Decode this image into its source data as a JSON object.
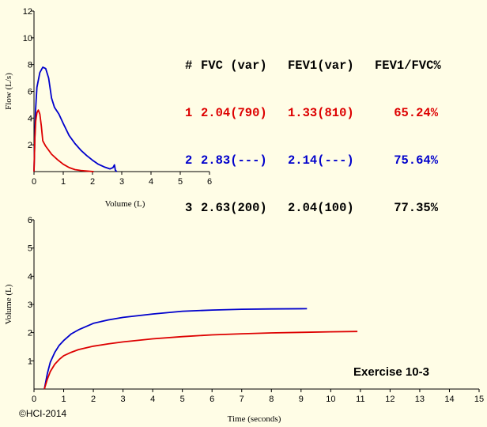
{
  "results_table": {
    "headers": [
      "#",
      "FVC (var)",
      "FEV1(var)",
      "FEV1/FVC%"
    ],
    "rows": [
      {
        "num": "1",
        "fvc": "2.04(790)",
        "fev1": "1.33(810)",
        "ratio": "65.24%",
        "color": "#dd0000"
      },
      {
        "num": "2",
        "fvc": "2.83(---)",
        "fev1": "2.14(---)",
        "ratio": "75.64%",
        "color": "#0000cc"
      },
      {
        "num": "3",
        "fvc": "2.63(200)",
        "fev1": "2.04(100)",
        "ratio": "77.35%",
        "color": "#000000"
      }
    ]
  },
  "exercise_label": "Exercise 10-3",
  "copyright": "©HCI-2014",
  "chart_data": [
    {
      "type": "line",
      "xlabel": "Volume (L)",
      "ylabel": "Flow (L/s)",
      "xlim": [
        0,
        6
      ],
      "ylim": [
        0,
        12
      ],
      "xticks": [
        "0",
        "1",
        "2",
        "3",
        "4",
        "5",
        "6"
      ],
      "yticks": [
        "2",
        "4",
        "6",
        "8",
        "10",
        "12"
      ],
      "series": [
        {
          "color": "#0000cc",
          "x": [
            0,
            0.05,
            0.1,
            0.2,
            0.3,
            0.4,
            0.5,
            0.6,
            0.7,
            0.85,
            1.0,
            1.2,
            1.4,
            1.6,
            1.8,
            2.0,
            2.2,
            2.4,
            2.6,
            2.7,
            2.75,
            2.78,
            2.83
          ],
          "y": [
            0,
            4.5,
            6.3,
            7.4,
            7.8,
            7.7,
            7.0,
            5.5,
            4.8,
            4.3,
            3.6,
            2.7,
            2.1,
            1.6,
            1.2,
            0.85,
            0.55,
            0.35,
            0.2,
            0.3,
            0.5,
            0.1,
            0
          ]
        },
        {
          "color": "#dd0000",
          "x": [
            0,
            0.03,
            0.06,
            0.1,
            0.15,
            0.2,
            0.25,
            0.3,
            0.4,
            0.5,
            0.6,
            0.8,
            1.0,
            1.2,
            1.4,
            1.6,
            1.8,
            2.04
          ],
          "y": [
            0,
            2.5,
            3.8,
            4.4,
            4.6,
            4.3,
            3.4,
            2.3,
            1.9,
            1.6,
            1.3,
            0.9,
            0.55,
            0.3,
            0.15,
            0.08,
            0.04,
            0
          ]
        }
      ]
    },
    {
      "type": "line",
      "xlabel": "Time (seconds)",
      "ylabel": "Volume (L)",
      "xlim": [
        0,
        15
      ],
      "ylim": [
        0,
        6
      ],
      "xticks": [
        "0",
        "1",
        "2",
        "3",
        "4",
        "5",
        "6",
        "7",
        "8",
        "9",
        "10",
        "11",
        "12",
        "13",
        "14",
        "15"
      ],
      "yticks": [
        "1",
        "2",
        "3",
        "4",
        "5",
        "6"
      ],
      "series": [
        {
          "color": "#0000cc",
          "x": [
            0.35,
            0.45,
            0.55,
            0.7,
            0.85,
            1.0,
            1.25,
            1.5,
            2.0,
            2.5,
            3.0,
            4.0,
            5.0,
            6.0,
            7.0,
            8.0,
            9.2
          ],
          "y": [
            0,
            0.55,
            0.95,
            1.3,
            1.55,
            1.72,
            1.95,
            2.1,
            2.33,
            2.45,
            2.54,
            2.66,
            2.76,
            2.8,
            2.83,
            2.84,
            2.85
          ]
        },
        {
          "color": "#dd0000",
          "x": [
            0.35,
            0.45,
            0.55,
            0.7,
            0.85,
            1.0,
            1.25,
            1.5,
            2.0,
            2.5,
            3.0,
            4.0,
            5.0,
            6.0,
            7.0,
            8.0,
            9.0,
            10.0,
            10.9
          ],
          "y": [
            0,
            0.35,
            0.62,
            0.88,
            1.05,
            1.18,
            1.3,
            1.4,
            1.52,
            1.6,
            1.67,
            1.78,
            1.86,
            1.92,
            1.96,
            1.99,
            2.01,
            2.03,
            2.04
          ]
        }
      ]
    }
  ]
}
